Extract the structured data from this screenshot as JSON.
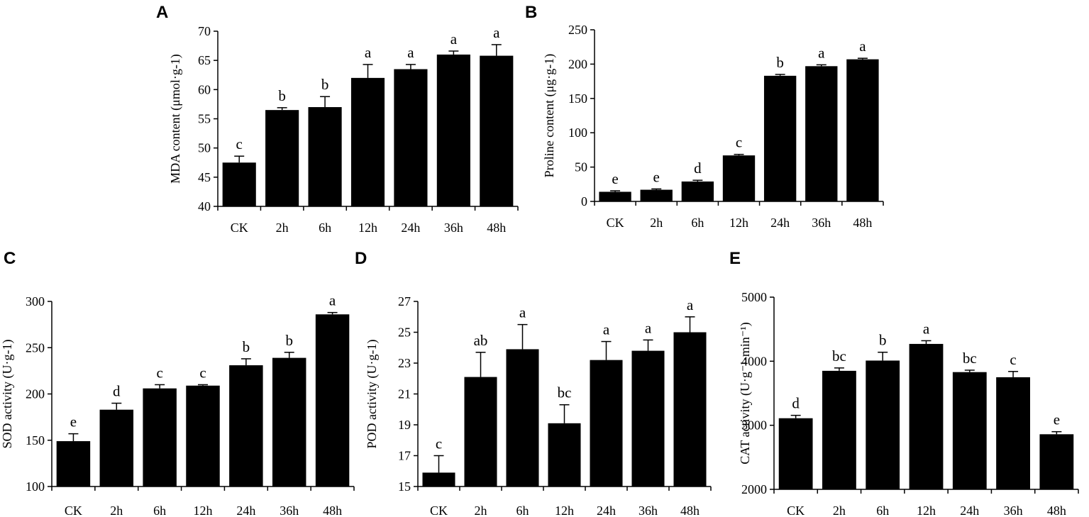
{
  "chart_data": [
    {
      "panel": "A",
      "type": "bar",
      "categories": [
        "CK",
        "2h",
        "6h",
        "12h",
        "24h",
        "36h",
        "48h"
      ],
      "values": [
        47.5,
        56.5,
        57.0,
        62.0,
        63.5,
        66.0,
        65.8
      ],
      "errors": [
        1.1,
        0.4,
        1.8,
        2.3,
        0.8,
        0.6,
        1.9
      ],
      "letters": [
        "c",
        "b",
        "b",
        "a",
        "a",
        "a",
        "a"
      ],
      "ylabel": "MDA content (μmol·g-1)",
      "ylim": [
        40,
        70
      ],
      "yticks": [
        "40",
        "45",
        "50",
        "55",
        "60",
        "65",
        "70"
      ],
      "color": "#000000"
    },
    {
      "panel": "B",
      "type": "bar",
      "categories": [
        "CK",
        "2h",
        "6h",
        "12h",
        "24h",
        "36h",
        "48h"
      ],
      "values": [
        14,
        17,
        29,
        67,
        183,
        197,
        207
      ],
      "errors": [
        1.5,
        1.2,
        1.8,
        1.5,
        2.0,
        2.0,
        1.5
      ],
      "letters": [
        "e",
        "e",
        "d",
        "c",
        "b",
        "a",
        "a"
      ],
      "ylabel": "Proline content (μg·g-1)",
      "ylim": [
        0,
        250
      ],
      "yticks": [
        "0",
        "50",
        "100",
        "150",
        "200",
        "250"
      ],
      "color": "#000000"
    },
    {
      "panel": "C",
      "type": "bar",
      "categories": [
        "CK",
        "2h",
        "6h",
        "12h",
        "24h",
        "36h",
        "48h"
      ],
      "values": [
        149,
        183,
        206,
        209,
        231,
        239,
        286
      ],
      "errors": [
        8,
        7,
        4,
        1,
        7,
        6,
        2
      ],
      "letters": [
        "e",
        "d",
        "c",
        "c",
        "b",
        "b",
        "a"
      ],
      "ylabel": "SOD activity (U·g-1)",
      "ylim": [
        100,
        300
      ],
      "yticks": [
        "100",
        "150",
        "200",
        "250",
        "300"
      ],
      "color": "#000000"
    },
    {
      "panel": "D",
      "type": "bar",
      "categories": [
        "CK",
        "2h",
        "6h",
        "12h",
        "24h",
        "36h",
        "48h"
      ],
      "values": [
        15.9,
        22.1,
        23.9,
        19.1,
        23.2,
        23.8,
        25.0
      ],
      "errors": [
        1.1,
        1.6,
        1.6,
        1.2,
        1.2,
        0.7,
        1.0
      ],
      "letters": [
        "c",
        "ab",
        "a",
        "bc",
        "a",
        "a",
        "a"
      ],
      "ylabel": "POD activity (U·g-1)",
      "ylim": [
        15,
        27
      ],
      "yticks": [
        "15",
        "17",
        "19",
        "21",
        "23",
        "25",
        "27"
      ],
      "color": "#000000"
    },
    {
      "panel": "E",
      "type": "bar",
      "categories": [
        "CK",
        "2h",
        "6h",
        "12h",
        "24h",
        "36h",
        "48h"
      ],
      "values": [
        3110,
        3850,
        4010,
        4270,
        3830,
        3750,
        2860
      ],
      "errors": [
        45,
        45,
        130,
        50,
        30,
        90,
        40
      ],
      "letters": [
        "d",
        "bc",
        "b",
        "a",
        "bc",
        "c",
        "e"
      ],
      "ylabel": "CAT activity (U·g⁻¹·min⁻¹)",
      "ylim": [
        2000,
        5000
      ],
      "yticks": [
        "2000",
        "3000",
        "4000",
        "5000"
      ],
      "color": "#000000"
    }
  ]
}
